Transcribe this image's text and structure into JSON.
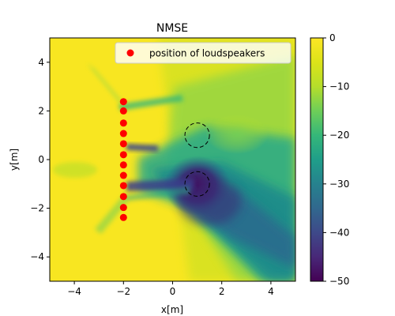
{
  "chart_data": {
    "type": "heatmap",
    "title": "NMSE",
    "xlabel": "x[m]",
    "ylabel": "y[m]",
    "xlim": [
      -5,
      5
    ],
    "ylim": [
      -5,
      5
    ],
    "x_ticks": [
      -4,
      -2,
      0,
      2,
      4
    ],
    "y_ticks": [
      -4,
      -2,
      0,
      2,
      4
    ],
    "colorbar": {
      "min": -50,
      "max": 0,
      "ticks": [
        0,
        -10,
        -20,
        -30,
        -40,
        -50
      ],
      "colormap": "viridis"
    },
    "legend": {
      "placement": "top-right",
      "label": "position of loudspeakers",
      "marker_color": "#ff0000"
    },
    "loudspeakers": {
      "x": -2,
      "y": [
        2.38,
        2.0,
        1.5,
        1.07,
        0.65,
        0.2,
        -0.22,
        -0.65,
        -1.07,
        -1.52,
        -1.97,
        -2.38
      ]
    },
    "circles": [
      {
        "cx": 1.0,
        "cy": 1.0,
        "r": 0.5
      },
      {
        "cx": 1.0,
        "cy": -1.0,
        "r": 0.5
      }
    ]
  }
}
